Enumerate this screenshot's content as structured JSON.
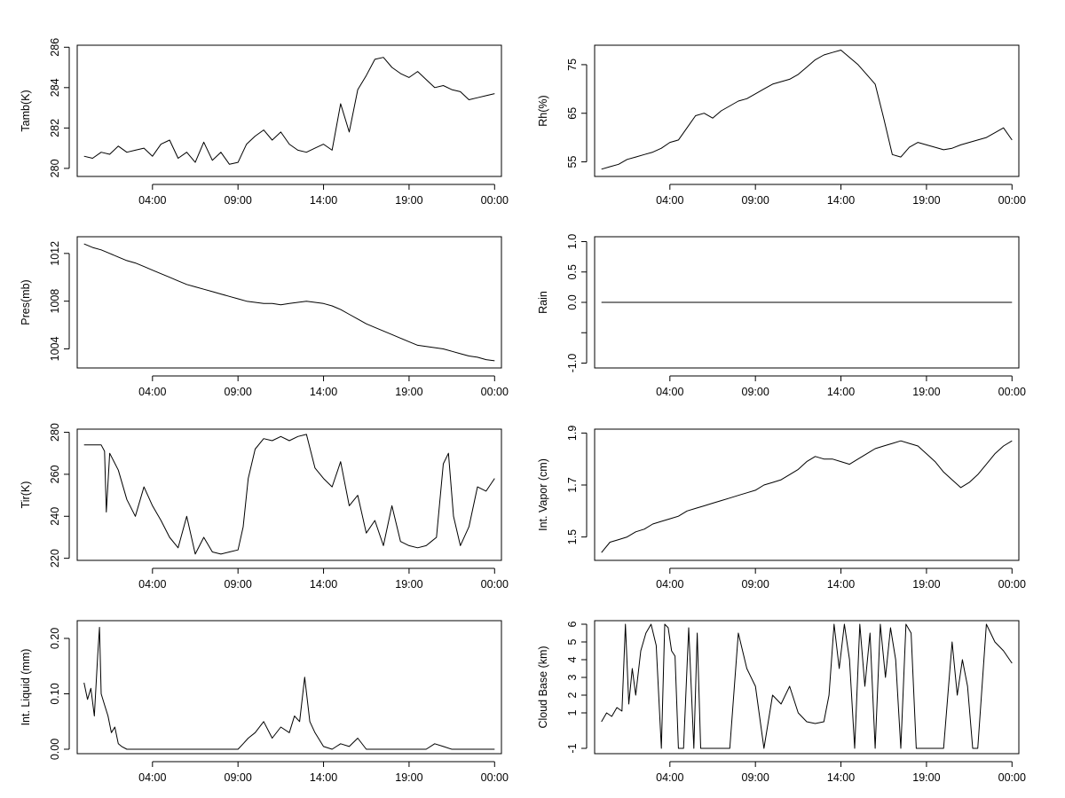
{
  "chart_data": [
    {
      "type": "line",
      "ylabel": "Tamb(K)",
      "x_ticks": [
        "04:00",
        "09:00",
        "14:00",
        "19:00",
        "00:00"
      ],
      "x_tick_hours": [
        4,
        9,
        14,
        19,
        24
      ],
      "x_range_hours": [
        -0.4,
        24.4
      ],
      "ylim": [
        279.6,
        286.1
      ],
      "y_ticks": [
        280,
        282,
        284,
        286
      ],
      "series": [
        {
          "x": [
            0,
            0.5,
            1,
            1.5,
            2,
            2.5,
            3,
            3.5,
            4,
            4.5,
            5,
            5.5,
            6,
            6.5,
            7,
            7.5,
            8,
            8.5,
            9,
            9.5,
            10,
            10.5,
            11,
            11.5,
            12,
            12.5,
            13,
            13.5,
            14,
            14.5,
            15,
            15.5,
            16,
            16.5,
            17,
            17.5,
            18,
            18.5,
            19,
            19.5,
            20,
            20.5,
            21,
            21.5,
            22,
            22.5,
            23,
            23.5,
            24
          ],
          "values": [
            280.6,
            280.5,
            280.8,
            280.7,
            281.1,
            280.8,
            280.9,
            281.0,
            280.6,
            281.2,
            281.4,
            280.5,
            280.8,
            280.3,
            281.3,
            280.4,
            280.8,
            280.2,
            280.3,
            281.2,
            281.6,
            281.9,
            281.4,
            281.8,
            281.2,
            280.9,
            280.8,
            281.0,
            281.2,
            280.9,
            283.2,
            281.8,
            283.9,
            284.6,
            285.4,
            285.5,
            285.0,
            284.7,
            284.5,
            284.8,
            284.4,
            284.0,
            284.1,
            283.9,
            283.8,
            283.4,
            283.5,
            283.6,
            283.7
          ]
        }
      ]
    },
    {
      "type": "line",
      "ylabel": "Rh(%)",
      "x_ticks": [
        "04:00",
        "09:00",
        "14:00",
        "19:00",
        "00:00"
      ],
      "x_tick_hours": [
        4,
        9,
        14,
        19,
        24
      ],
      "x_range_hours": [
        -0.4,
        24.4
      ],
      "ylim": [
        52,
        79
      ],
      "y_ticks": [
        55,
        65,
        75
      ],
      "series": [
        {
          "x": [
            0,
            0.5,
            1,
            1.5,
            2,
            2.5,
            3,
            3.5,
            4,
            4.5,
            5,
            5.5,
            6,
            6.5,
            7,
            7.5,
            8,
            8.5,
            9,
            9.5,
            10,
            10.5,
            11,
            11.5,
            12,
            12.5,
            13,
            13.5,
            14,
            14.5,
            15,
            15.5,
            16,
            16.5,
            17,
            17.5,
            18,
            18.5,
            19,
            19.5,
            20,
            20.5,
            21,
            21.5,
            22,
            22.5,
            23,
            23.5,
            24
          ],
          "values": [
            53.5,
            54,
            54.5,
            55.5,
            56,
            56.5,
            57,
            57.8,
            59,
            59.5,
            62,
            64.5,
            65,
            64,
            65.5,
            66.5,
            67.5,
            68,
            69,
            70,
            71,
            71.5,
            72,
            73,
            74.5,
            76,
            77,
            77.5,
            78,
            76.5,
            75,
            73,
            71,
            64,
            56.5,
            56,
            58,
            59,
            58.5,
            58,
            57.5,
            57.8,
            58.5,
            59,
            59.5,
            60,
            61,
            62,
            59.5
          ]
        }
      ]
    },
    {
      "type": "line",
      "ylabel": "Pres(mb)",
      "x_ticks": [
        "04:00",
        "09:00",
        "14:00",
        "19:00",
        "00:00"
      ],
      "x_tick_hours": [
        4,
        9,
        14,
        19,
        24
      ],
      "x_range_hours": [
        -0.4,
        24.4
      ],
      "ylim": [
        1002.4,
        1013.4
      ],
      "y_ticks": [
        1004,
        1008,
        1012
      ],
      "series": [
        {
          "x": [
            0,
            0.5,
            1,
            1.5,
            2,
            2.5,
            3,
            3.5,
            4,
            4.5,
            5,
            5.5,
            6,
            6.5,
            7,
            7.5,
            8,
            8.5,
            9,
            9.5,
            10,
            10.5,
            11,
            11.5,
            12,
            12.5,
            13,
            13.5,
            14,
            14.5,
            15,
            15.5,
            16,
            16.5,
            17,
            17.5,
            18,
            18.5,
            19,
            19.5,
            20,
            20.5,
            21,
            21.5,
            22,
            22.5,
            23,
            23.5,
            24
          ],
          "values": [
            1012.8,
            1012.5,
            1012.3,
            1012.0,
            1011.7,
            1011.4,
            1011.2,
            1010.9,
            1010.6,
            1010.3,
            1010.0,
            1009.7,
            1009.4,
            1009.2,
            1009.0,
            1008.8,
            1008.6,
            1008.4,
            1008.2,
            1008.0,
            1007.9,
            1007.8,
            1007.8,
            1007.7,
            1007.8,
            1007.9,
            1008.0,
            1007.9,
            1007.8,
            1007.6,
            1007.3,
            1006.9,
            1006.5,
            1006.1,
            1005.8,
            1005.5,
            1005.2,
            1004.9,
            1004.6,
            1004.3,
            1004.2,
            1004.1,
            1004.0,
            1003.8,
            1003.6,
            1003.4,
            1003.3,
            1003.1,
            1003.0
          ]
        }
      ]
    },
    {
      "type": "line",
      "ylabel": "Rain",
      "x_ticks": [
        "04:00",
        "09:00",
        "14:00",
        "19:00",
        "00:00"
      ],
      "x_tick_hours": [
        4,
        9,
        14,
        19,
        24
      ],
      "x_range_hours": [
        -0.4,
        24.4
      ],
      "ylim": [
        -1.08,
        1.08
      ],
      "y_ticks": [
        -1.0,
        -0.5,
        0.0,
        0.5,
        1.0
      ],
      "y_tick_labels": [
        "-1.0",
        "",
        "0.0",
        "0.5",
        "1.0"
      ],
      "series": [
        {
          "x": [
            0,
            24
          ],
          "values": [
            0,
            0
          ]
        }
      ]
    },
    {
      "type": "line",
      "ylabel": "Tir(K)",
      "x_ticks": [
        "04:00",
        "09:00",
        "14:00",
        "19:00",
        "00:00"
      ],
      "x_tick_hours": [
        4,
        9,
        14,
        19,
        24
      ],
      "x_range_hours": [
        -0.4,
        24.4
      ],
      "ylim": [
        219,
        281.5
      ],
      "y_ticks": [
        220,
        240,
        260,
        280
      ],
      "series": [
        {
          "x": [
            0,
            0.5,
            1,
            1.2,
            1.3,
            1.5,
            2,
            2.5,
            3,
            3.5,
            4,
            4.5,
            5,
            5.5,
            6,
            6.5,
            7,
            7.5,
            8,
            8.5,
            9,
            9.3,
            9.6,
            10,
            10.5,
            11,
            11.5,
            12,
            12.5,
            13,
            13.5,
            14,
            14.5,
            15,
            15.5,
            16,
            16.5,
            17,
            17.5,
            18,
            18.5,
            19,
            19.5,
            20,
            20.3,
            20.6,
            21,
            21.3,
            21.6,
            22,
            22.5,
            23,
            23.5,
            24
          ],
          "values": [
            274,
            274,
            274,
            271,
            242,
            270,
            262,
            248,
            240,
            254,
            245,
            238,
            230,
            225,
            240,
            222,
            230,
            223,
            222,
            223,
            224,
            235,
            258,
            272,
            277,
            276,
            278,
            276,
            278,
            279,
            263,
            258,
            254,
            266,
            245,
            250,
            232,
            238,
            226,
            245,
            228,
            226,
            225,
            226,
            228,
            230,
            265,
            270,
            240,
            226,
            235,
            254,
            252,
            258
          ]
        }
      ]
    },
    {
      "type": "line",
      "ylabel": "Int. Vapor (cm)",
      "x_ticks": [
        "04:00",
        "09:00",
        "14:00",
        "19:00",
        "00:00"
      ],
      "x_tick_hours": [
        4,
        9,
        14,
        19,
        24
      ],
      "x_range_hours": [
        -0.4,
        24.4
      ],
      "ylim": [
        1.41,
        1.915
      ],
      "y_ticks": [
        1.5,
        1.7,
        1.9
      ],
      "y_tick_labels": [
        "1.5",
        "1.7",
        "1.9"
      ],
      "series": [
        {
          "x": [
            0,
            0.5,
            1,
            1.5,
            2,
            2.5,
            3,
            3.5,
            4,
            4.5,
            5,
            5.5,
            6,
            6.5,
            7,
            7.5,
            8,
            8.5,
            9,
            9.5,
            10,
            10.5,
            11,
            11.5,
            12,
            12.5,
            13,
            13.5,
            14,
            14.5,
            15,
            15.5,
            16,
            16.5,
            17,
            17.5,
            18,
            18.5,
            19,
            19.5,
            20,
            20.5,
            21,
            21.5,
            22,
            22.5,
            23,
            23.5,
            24
          ],
          "values": [
            1.44,
            1.48,
            1.49,
            1.5,
            1.52,
            1.53,
            1.55,
            1.56,
            1.57,
            1.58,
            1.6,
            1.61,
            1.62,
            1.63,
            1.64,
            1.65,
            1.66,
            1.67,
            1.68,
            1.7,
            1.71,
            1.72,
            1.74,
            1.76,
            1.79,
            1.81,
            1.8,
            1.8,
            1.79,
            1.78,
            1.8,
            1.82,
            1.84,
            1.85,
            1.86,
            1.87,
            1.86,
            1.85,
            1.82,
            1.79,
            1.75,
            1.72,
            1.69,
            1.71,
            1.74,
            1.78,
            1.82,
            1.85,
            1.87
          ]
        }
      ]
    },
    {
      "type": "line",
      "ylabel": "Int. Liquid (mm)",
      "x_ticks": [
        "04:00",
        "09:00",
        "14:00",
        "19:00",
        "00:00"
      ],
      "x_tick_hours": [
        4,
        9,
        14,
        19,
        24
      ],
      "x_range_hours": [
        -0.4,
        24.4
      ],
      "ylim": [
        -0.008,
        0.232
      ],
      "y_ticks": [
        0.0,
        0.1,
        0.2
      ],
      "y_tick_labels": [
        "0.00",
        "0.10",
        "0.20"
      ],
      "series": [
        {
          "x": [
            0,
            0.2,
            0.4,
            0.6,
            0.8,
            0.9,
            1.0,
            1.2,
            1.4,
            1.6,
            1.8,
            2.0,
            2.2,
            2.5,
            3,
            4,
            5,
            6,
            7,
            8,
            9,
            9.3,
            9.6,
            10,
            10.5,
            11,
            11.5,
            12,
            12.3,
            12.6,
            12.9,
            13.2,
            13.5,
            14,
            14.5,
            15,
            15.5,
            16,
            16.5,
            17,
            18,
            19,
            20,
            20.5,
            21,
            21.5,
            22,
            23,
            24
          ],
          "values": [
            0.12,
            0.09,
            0.11,
            0.06,
            0.17,
            0.22,
            0.1,
            0.08,
            0.06,
            0.03,
            0.04,
            0.01,
            0.005,
            0,
            0,
            0,
            0,
            0,
            0,
            0,
            0,
            0.01,
            0.02,
            0.03,
            0.05,
            0.02,
            0.04,
            0.03,
            0.06,
            0.05,
            0.13,
            0.05,
            0.03,
            0.005,
            0,
            0.01,
            0.005,
            0.02,
            0,
            0,
            0,
            0,
            0,
            0.01,
            0.005,
            0,
            0,
            0,
            0
          ]
        }
      ]
    },
    {
      "type": "line",
      "ylabel": "Cloud Base (km)",
      "x_ticks": [
        "04:00",
        "09:00",
        "14:00",
        "19:00",
        "00:00"
      ],
      "x_tick_hours": [
        4,
        9,
        14,
        19,
        24
      ],
      "x_range_hours": [
        -0.4,
        24.4
      ],
      "ylim": [
        -1.3,
        6.2
      ],
      "y_ticks": [
        -1,
        1,
        2,
        3,
        4,
        5,
        6
      ],
      "y_tick_labels": [
        "-1",
        "1",
        "2",
        "3",
        "4",
        "5",
        "6"
      ],
      "series": [
        {
          "x": [
            0,
            0.3,
            0.6,
            0.9,
            1.2,
            1.4,
            1.6,
            1.8,
            2.0,
            2.3,
            2.6,
            2.9,
            3.2,
            3.5,
            3.7,
            3.9,
            4.1,
            4.3,
            4.5,
            4.8,
            5.1,
            5.4,
            5.6,
            5.8,
            6.0,
            6.2,
            6.5,
            7.0,
            7.5,
            8.0,
            8.5,
            9.0,
            9.5,
            10.0,
            10.5,
            11.0,
            11.5,
            12.0,
            12.5,
            13.0,
            13.3,
            13.6,
            13.9,
            14.2,
            14.5,
            14.8,
            15.1,
            15.4,
            15.7,
            16.0,
            16.3,
            16.6,
            16.9,
            17.2,
            17.5,
            17.8,
            18.1,
            18.4,
            18.7,
            19.0,
            19.5,
            20.0,
            20.5,
            20.8,
            21.1,
            21.4,
            21.7,
            22.0,
            22.5,
            23.0,
            23.5,
            24.0
          ],
          "values": [
            0.5,
            1.0,
            0.8,
            1.3,
            1.1,
            6.0,
            1.5,
            3.5,
            2.0,
            4.5,
            5.5,
            6.0,
            4.8,
            -1,
            6.0,
            5.8,
            4.5,
            4.2,
            -1,
            -1,
            5.8,
            -1,
            5.5,
            -1,
            -1,
            -1,
            -1,
            -1,
            -1,
            5.5,
            3.5,
            2.5,
            -1,
            2.0,
            1.5,
            2.5,
            1.0,
            0.5,
            0.4,
            0.5,
            2.0,
            6.0,
            3.5,
            6.0,
            4.0,
            -1,
            6.0,
            2.5,
            5.5,
            -1,
            6.0,
            3.0,
            5.8,
            4.0,
            -1,
            6.0,
            5.5,
            -1,
            -1,
            -1,
            -1,
            -1,
            5.0,
            2.0,
            4.0,
            2.5,
            -1,
            -1,
            6.0,
            5.0,
            4.5,
            3.8
          ]
        }
      ]
    }
  ]
}
